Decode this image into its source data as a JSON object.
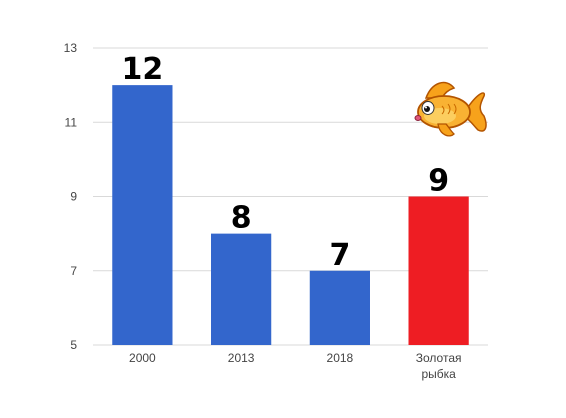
{
  "chart_data": {
    "type": "bar",
    "categories": [
      [
        "2000"
      ],
      [
        "2013"
      ],
      [
        "2018"
      ],
      [
        "Золотая",
        "рыбка"
      ]
    ],
    "values": [
      12,
      8,
      7,
      9
    ],
    "data_labels": [
      "12",
      "8",
      "7",
      "9"
    ],
    "colors": [
      "#3366cc",
      "#3366cc",
      "#3366cc",
      "#ee1d23"
    ],
    "yticks": [
      "5",
      "7",
      "9",
      "11",
      "13"
    ],
    "ylim": [
      5,
      13
    ],
    "grid": true,
    "legend": "none",
    "decoration": "goldfish-icon"
  }
}
